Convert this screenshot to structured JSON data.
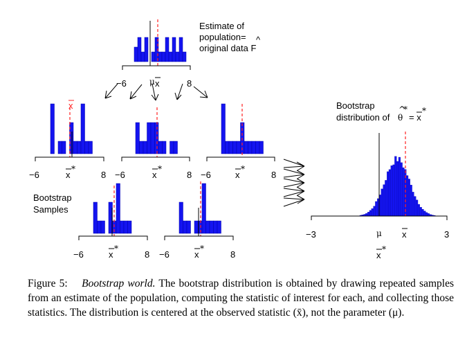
{
  "figure": {
    "population_label": [
      "Estimate of",
      "population=",
      "original data F"
    ],
    "population_hat": "^",
    "boot_dist_label": [
      "Bootstrap",
      "distribution of"
    ],
    "boot_dist_theta": "θ",
    "boot_dist_eq": "= x",
    "star": "*",
    "samples_label": [
      "Bootstrap",
      "Samples"
    ],
    "xbar": "x",
    "mu": "μ",
    "ticks": {
      "neg6": "−6",
      "pos8": "8",
      "neg3": "−3",
      "pos3": "3"
    },
    "colors": {
      "bar": "#1414f0",
      "bar_edge": "#0000aa",
      "mean_line": "#ff2020",
      "axis": "#000000"
    }
  },
  "chart_data": [
    {
      "type": "bar",
      "title": "original data F-hat",
      "xlim": [
        -6,
        8
      ],
      "mean": 0.8,
      "mu": 0,
      "counts": [
        3,
        5,
        2,
        5,
        0,
        2,
        5,
        2,
        2,
        5,
        2,
        5,
        2,
        5,
        2
      ]
    },
    {
      "type": "bar",
      "title": "bootstrap sample 1",
      "xlim": [
        -6,
        8
      ],
      "mean": 0.4,
      "counts": [
        8,
        0,
        2,
        2,
        0,
        5,
        2,
        2,
        8,
        2,
        2
      ]
    },
    {
      "type": "bar",
      "title": "bootstrap sample 2",
      "xlim": [
        -6,
        8
      ],
      "mean": 0.8,
      "counts": [
        5,
        2,
        2,
        5,
        5,
        5,
        2,
        2,
        0,
        2,
        2
      ]
    },
    {
      "type": "bar",
      "title": "bootstrap sample 3",
      "xlim": [
        -6,
        8
      ],
      "mean": 0.9,
      "counts": [
        8,
        2,
        2,
        2,
        2,
        5,
        2,
        2,
        2,
        2,
        2
      ]
    },
    {
      "type": "bar",
      "title": "bootstrap sample 4",
      "xlim": [
        -6,
        8
      ],
      "mean": 0.7,
      "counts": [
        5,
        2,
        2,
        0,
        5,
        2,
        8,
        2,
        2,
        2
      ]
    },
    {
      "type": "bar",
      "title": "bootstrap sample 5",
      "xlim": [
        -6,
        8
      ],
      "mean": 0.6,
      "counts": [
        5,
        2,
        2,
        0,
        2,
        2,
        8,
        2,
        2,
        2,
        2
      ]
    },
    {
      "type": "bar",
      "title": "Bootstrap distribution of theta-hat* = x-bar*",
      "xlim": [
        -3,
        3
      ],
      "mean": 0.8,
      "mu": 0,
      "xlabel": "x*"
    }
  ],
  "caption": {
    "figure_label": "Figure 5:",
    "title": "Bootstrap world.",
    "text": "The bootstrap distribution is obtained by drawing repeated samples from an estimate of the population, computing the statistic of interest for each, and collecting those statistics. The distribution is centered at the observed statistic (x̄), not the parameter (μ)."
  }
}
